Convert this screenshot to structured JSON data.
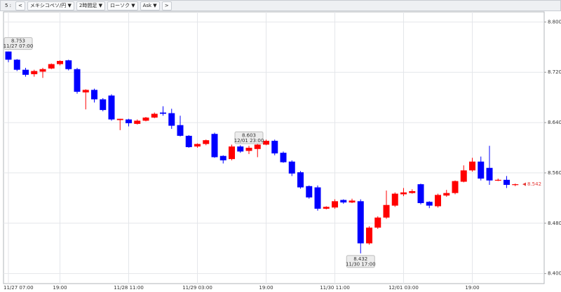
{
  "toolbar": {
    "items": [
      "5 :",
      "<",
      "メキシコペソ/円",
      "2時間足",
      "ローソク",
      "Ask",
      ">"
    ]
  },
  "chart_data": {
    "type": "candlestick",
    "categories": [
      "11/27 07:00",
      null,
      null,
      null,
      null,
      null,
      "19:00",
      null,
      null,
      null,
      null,
      null,
      null,
      null,
      "11/28 11:00",
      null,
      null,
      null,
      null,
      null,
      null,
      null,
      "11/29 03:00",
      null,
      null,
      null,
      null,
      null,
      null,
      null,
      "19:00",
      null,
      null,
      null,
      null,
      null,
      null,
      null,
      "11/30 11:00",
      null,
      null,
      null,
      null,
      null,
      null,
      null,
      "12/01 03:00",
      null,
      null,
      null,
      null,
      null,
      null,
      null,
      "19:00",
      null,
      null,
      null,
      null,
      null
    ],
    "open": [
      8.753,
      8.74,
      8.724,
      8.717,
      8.721,
      8.726,
      8.733,
      8.739,
      8.725,
      8.688,
      8.692,
      8.677,
      8.683,
      8.644,
      8.645,
      8.638,
      8.643,
      8.648,
      8.656,
      8.655,
      8.636,
      8.619,
      8.602,
      8.606,
      8.622,
      8.587,
      8.582,
      8.602,
      8.595,
      8.598,
      8.605,
      8.611,
      8.592,
      8.578,
      8.561,
      8.539,
      8.537,
      8.503,
      8.505,
      8.517,
      8.513,
      8.515,
      8.448,
      8.473,
      8.489,
      8.508,
      8.526,
      8.528,
      8.542,
      8.514,
      8.507,
      8.524,
      8.528,
      8.546,
      8.564,
      8.578,
      8.568,
      8.548,
      8.549,
      8.541
    ],
    "high": [
      8.753,
      8.741,
      8.727,
      8.724,
      8.727,
      8.734,
      8.739,
      8.74,
      8.727,
      8.693,
      8.694,
      8.679,
      8.685,
      8.646,
      8.646,
      8.645,
      8.649,
      8.656,
      8.666,
      8.662,
      8.651,
      8.62,
      8.607,
      8.613,
      8.624,
      8.588,
      8.605,
      8.604,
      8.603,
      8.607,
      8.613,
      8.613,
      8.594,
      8.58,
      8.563,
      8.54,
      8.54,
      8.507,
      8.518,
      8.518,
      8.519,
      8.518,
      8.475,
      8.491,
      8.532,
      8.529,
      8.536,
      8.534,
      8.543,
      8.515,
      8.527,
      8.533,
      8.548,
      8.572,
      8.584,
      8.586,
      8.603,
      8.551,
      8.555,
      8.543
    ],
    "low": [
      8.736,
      8.722,
      8.713,
      8.713,
      8.711,
      8.725,
      8.731,
      8.723,
      8.686,
      8.661,
      8.672,
      8.658,
      8.643,
      8.628,
      8.634,
      8.637,
      8.642,
      8.647,
      8.651,
      8.63,
      8.618,
      8.6,
      8.6,
      8.604,
      8.584,
      8.575,
      8.58,
      8.592,
      8.59,
      8.585,
      8.604,
      8.588,
      8.576,
      8.555,
      8.535,
      8.519,
      8.5,
      8.502,
      8.503,
      8.511,
      8.512,
      8.432,
      8.446,
      8.471,
      8.487,
      8.506,
      8.523,
      8.527,
      8.51,
      8.504,
      8.505,
      8.522,
      8.526,
      8.545,
      8.562,
      8.548,
      8.541,
      8.547,
      8.536,
      8.539
    ],
    "close": [
      8.74,
      8.724,
      8.716,
      8.722,
      8.725,
      8.733,
      8.738,
      8.725,
      8.689,
      8.692,
      8.677,
      8.66,
      8.645,
      8.646,
      8.639,
      8.643,
      8.648,
      8.654,
      8.654,
      8.635,
      8.619,
      8.601,
      8.606,
      8.612,
      8.585,
      8.58,
      8.602,
      8.594,
      8.6,
      8.605,
      8.611,
      8.591,
      8.577,
      8.559,
      8.537,
      8.521,
      8.503,
      8.506,
      8.515,
      8.513,
      8.516,
      8.448,
      8.473,
      8.489,
      8.509,
      8.527,
      8.529,
      8.531,
      8.512,
      8.508,
      8.525,
      8.528,
      8.547,
      8.564,
      8.578,
      8.551,
      8.548,
      8.549,
      8.541,
      8.542
    ],
    "up_color": "#ff0000",
    "down_color": "#0000ff",
    "ylim": [
      8.384,
      8.816
    ],
    "yticks": [
      {
        "value": 8.4,
        "label": "8.400"
      },
      {
        "value": 8.48,
        "label": "8.480"
      },
      {
        "value": 8.56,
        "label": "8.560"
      },
      {
        "value": 8.64,
        "label": "8.640"
      },
      {
        "value": 8.72,
        "label": "8.720"
      },
      {
        "value": 8.8,
        "label": "8.800"
      }
    ],
    "grid": true,
    "annotations": [
      {
        "value": 8.753,
        "time": "11/27 07:00"
      },
      {
        "value": 8.432,
        "time": "11/30 17:00"
      },
      {
        "value": 8.603,
        "time": "12/01 23:00"
      }
    ]
  }
}
